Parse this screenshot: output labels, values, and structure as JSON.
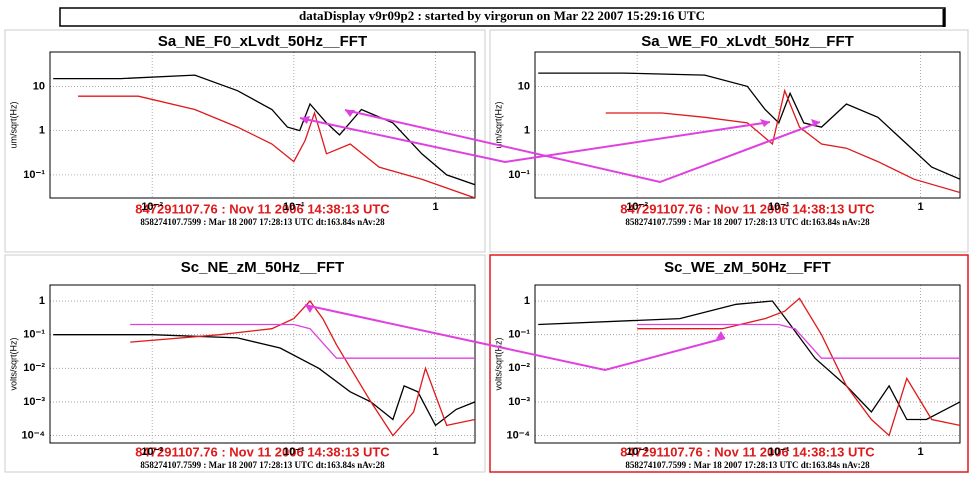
{
  "header": {
    "title": "dataDisplay v9r09p2 : started by virgorun on  Mar 22 2007 15:29:16 UTC"
  },
  "chart_data": [
    {
      "type": "line",
      "title": "Sa_NE_F0_xLvdt_50Hz__FFT",
      "subtitle": "847291107.76 : Nov 11 2006 14:38:13 UTC",
      "footnote": "858274107.7599 : Mar 18 2007 17:28:13 UTC dt:163.84s nAv:28",
      "ylabel": "um/sqrt(Hz)",
      "log_x": true,
      "log_y": true,
      "grid": true,
      "xlim": [
        0.0019,
        1.9
      ],
      "ylim": [
        0.03,
        60
      ],
      "xticks": [
        {
          "value": 0.01,
          "label": "10⁻²"
        },
        {
          "value": 0.1,
          "label": "10⁻¹"
        },
        1
      ],
      "yticks": [
        {
          "value": 0.1,
          "label": "10⁻¹"
        },
        1,
        10
      ],
      "series": [
        {
          "color": "#000000",
          "x": [
            0.002,
            0.006,
            0.02,
            0.04,
            0.07,
            0.09,
            0.11,
            0.13,
            0.17,
            0.21,
            0.3,
            0.5,
            0.8,
            1.2,
            1.9
          ],
          "values": [
            15,
            15,
            18,
            8,
            3,
            1.2,
            1,
            4,
            1.5,
            0.8,
            3,
            1.5,
            0.3,
            0.1,
            0.06
          ]
        },
        {
          "color": "#e0191b",
          "x": [
            0.003,
            0.008,
            0.02,
            0.04,
            0.07,
            0.1,
            0.12,
            0.14,
            0.17,
            0.25,
            0.4,
            0.8,
            1.9
          ],
          "values": [
            6,
            6,
            3,
            1.2,
            0.5,
            0.2,
            0.6,
            2.5,
            0.3,
            0.5,
            0.15,
            0.08,
            0.03
          ]
        }
      ]
    },
    {
      "type": "line",
      "title": "Sa_WE_F0_xLvdt_50Hz__FFT",
      "subtitle": "847291107.76 : Nov 11 2006 14:38:13 UTC",
      "footnote": "858274107.7599 : Mar 18 2007 17:28:13 UTC dt:163.84s nAv:28",
      "ylabel": "um/sqrt(Hz)",
      "log_x": true,
      "log_y": true,
      "grid": true,
      "xlim": [
        0.0019,
        1.9
      ],
      "ylim": [
        0.03,
        60
      ],
      "xticks": [
        {
          "value": 0.01,
          "label": "10⁻²"
        },
        {
          "value": 0.1,
          "label": "10⁻¹"
        },
        1
      ],
      "yticks": [
        {
          "value": 0.1,
          "label": "10⁻¹"
        },
        1,
        10
      ],
      "series": [
        {
          "color": "#000000",
          "x": [
            0.002,
            0.008,
            0.03,
            0.06,
            0.08,
            0.1,
            0.12,
            0.15,
            0.2,
            0.3,
            0.5,
            0.8,
            1.2,
            1.9
          ],
          "values": [
            20,
            20,
            18,
            10,
            3,
            1.5,
            7,
            1.5,
            1.2,
            4,
            2,
            0.5,
            0.15,
            0.08
          ]
        },
        {
          "color": "#e0191b",
          "x": [
            0.006,
            0.015,
            0.03,
            0.06,
            0.09,
            0.11,
            0.14,
            0.2,
            0.3,
            0.5,
            0.9,
            1.9
          ],
          "values": [
            2.5,
            2.5,
            2,
            1.5,
            0.5,
            8,
            1.2,
            0.5,
            0.4,
            0.2,
            0.08,
            0.04
          ]
        }
      ]
    },
    {
      "type": "line",
      "title": "Sc_NE_zM_50Hz__FFT",
      "subtitle": "847291107.76 : Nov 11 2006 14:38:13 UTC",
      "footnote": "858274107.7599 : Mar 18 2007 17:28:13 UTC dt:163.84s nAv:28",
      "ylabel": "volts/sqrt(Hz)",
      "log_x": true,
      "log_y": true,
      "grid": true,
      "xlim": [
        0.0019,
        1.9
      ],
      "ylim": [
        6e-05,
        3
      ],
      "xticks": [
        {
          "value": 0.01,
          "label": "10⁻²"
        },
        {
          "value": 0.1,
          "label": "10⁻¹"
        },
        1
      ],
      "yticks": [
        {
          "value": 0.0001,
          "label": "10⁻⁴"
        },
        {
          "value": 0.001,
          "label": "10⁻³"
        },
        {
          "value": 0.01,
          "label": "10⁻²"
        },
        {
          "value": 0.1,
          "label": "10⁻¹"
        },
        1
      ],
      "series": [
        {
          "color": "#000000",
          "x": [
            0.002,
            0.01,
            0.04,
            0.08,
            0.15,
            0.25,
            0.35,
            0.5,
            0.6,
            0.75,
            1,
            1.4,
            1.9
          ],
          "values": [
            0.1,
            0.1,
            0.08,
            0.04,
            0.01,
            0.002,
            0.001,
            0.0003,
            0.003,
            0.002,
            0.0002,
            0.0006,
            0.001
          ]
        },
        {
          "color": "#e0191b",
          "x": [
            0.007,
            0.03,
            0.07,
            0.1,
            0.13,
            0.16,
            0.2,
            0.35,
            0.5,
            0.7,
            0.85,
            1.2,
            1.9
          ],
          "values": [
            0.06,
            0.1,
            0.15,
            0.3,
            1,
            0.3,
            0.05,
            0.001,
            0.0001,
            0.0005,
            0.01,
            0.0002,
            0.0003
          ]
        },
        {
          "color": "#e040e0",
          "x": [
            0.007,
            0.1,
            0.13,
            0.2,
            1.9
          ],
          "values": [
            0.2,
            0.2,
            0.15,
            0.02,
            0.02
          ]
        }
      ]
    },
    {
      "type": "line",
      "title": "Sc_WE_zM_50Hz__FFT",
      "subtitle": "847291107.76 : Nov 11 2006 14:38:13 UTC",
      "footnote": "858274107.7599 : Mar 18 2007 17:28:13 UTC dt:163.84s nAv:28",
      "ylabel": "volts/sqrt(Hz)",
      "log_x": true,
      "log_y": true,
      "grid": true,
      "xlim": [
        0.0019,
        1.9
      ],
      "ylim": [
        6e-05,
        3
      ],
      "xticks": [
        {
          "value": 0.01,
          "label": "10⁻²"
        },
        {
          "value": 0.1,
          "label": "10⁻¹"
        },
        1
      ],
      "yticks": [
        {
          "value": 0.0001,
          "label": "10⁻⁴"
        },
        {
          "value": 0.001,
          "label": "10⁻³"
        },
        {
          "value": 0.01,
          "label": "10⁻²"
        },
        {
          "value": 0.1,
          "label": "10⁻¹"
        },
        1
      ],
      "series": [
        {
          "color": "#000000",
          "x": [
            0.002,
            0.02,
            0.05,
            0.09,
            0.12,
            0.18,
            0.3,
            0.45,
            0.6,
            0.8,
            1.1,
            1.9
          ],
          "values": [
            0.2,
            0.3,
            0.8,
            1,
            0.2,
            0.02,
            0.003,
            0.0005,
            0.003,
            0.0003,
            0.0003,
            0.001
          ]
        },
        {
          "color": "#e0191b",
          "x": [
            0.01,
            0.04,
            0.08,
            0.11,
            0.14,
            0.2,
            0.3,
            0.45,
            0.6,
            0.8,
            1.2,
            1.9
          ],
          "values": [
            0.15,
            0.15,
            0.3,
            0.5,
            1.2,
            0.1,
            0.003,
            0.0003,
            0.0001,
            0.005,
            0.0003,
            0.0002
          ]
        },
        {
          "color": "#e040e0",
          "x": [
            0.01,
            0.1,
            0.13,
            0.2,
            1.9
          ],
          "values": [
            0.2,
            0.2,
            0.15,
            0.02,
            0.02
          ]
        }
      ]
    }
  ]
}
